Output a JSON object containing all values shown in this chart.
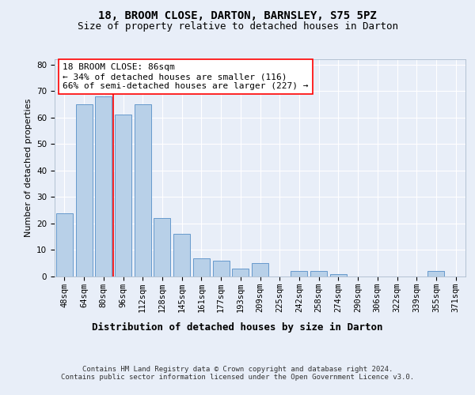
{
  "title": "18, BROOM CLOSE, DARTON, BARNSLEY, S75 5PZ",
  "subtitle": "Size of property relative to detached houses in Darton",
  "xlabel": "Distribution of detached houses by size in Darton",
  "ylabel": "Number of detached properties",
  "categories": [
    "48sqm",
    "64sqm",
    "80sqm",
    "96sqm",
    "112sqm",
    "128sqm",
    "145sqm",
    "161sqm",
    "177sqm",
    "193sqm",
    "209sqm",
    "225sqm",
    "242sqm",
    "258sqm",
    "274sqm",
    "290sqm",
    "306sqm",
    "322sqm",
    "339sqm",
    "355sqm",
    "371sqm"
  ],
  "values": [
    24,
    65,
    68,
    61,
    65,
    22,
    16,
    7,
    6,
    3,
    5,
    0,
    2,
    2,
    1,
    0,
    0,
    0,
    0,
    2,
    0
  ],
  "bar_color": "#b8d0e8",
  "bar_edge_color": "#6699cc",
  "vline_x": 2.5,
  "vline_color": "red",
  "annotation_text": "18 BROOM CLOSE: 86sqm\n← 34% of detached houses are smaller (116)\n66% of semi-detached houses are larger (227) →",
  "annotation_box_color": "white",
  "annotation_box_edge_color": "red",
  "ylim": [
    0,
    82
  ],
  "yticks": [
    0,
    10,
    20,
    30,
    40,
    50,
    60,
    70,
    80
  ],
  "footer": "Contains HM Land Registry data © Crown copyright and database right 2024.\nContains public sector information licensed under the Open Government Licence v3.0.",
  "background_color": "#e8eef8",
  "grid_color": "white",
  "title_fontsize": 10,
  "subtitle_fontsize": 9,
  "xlabel_fontsize": 9,
  "ylabel_fontsize": 8,
  "tick_fontsize": 7.5,
  "annotation_fontsize": 8,
  "footer_fontsize": 6.5
}
